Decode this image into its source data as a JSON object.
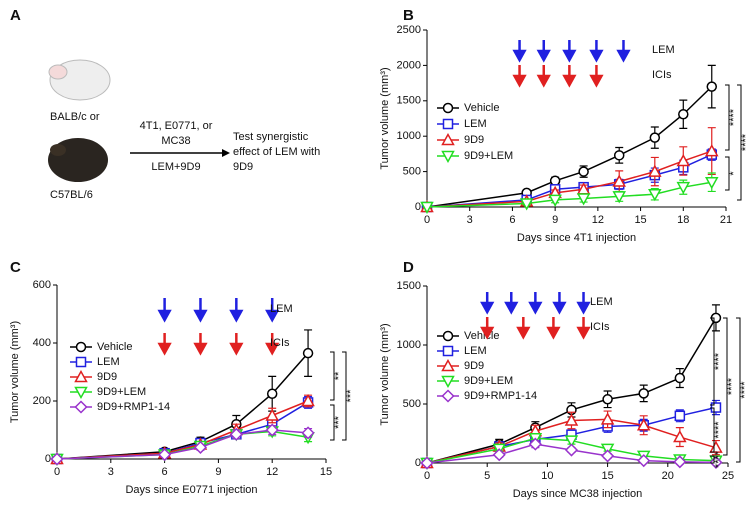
{
  "panel_a": {
    "label": "A",
    "mouse_top": "BALB/c or",
    "mouse_bottom": "C57BL/6",
    "cells": [
      "4T1, E0771, or",
      "MC38"
    ],
    "treatment": "LEM+9D9",
    "result": [
      "Test synergistic",
      "effect of LEM with",
      "9D9"
    ]
  },
  "chart_data": [
    {
      "type": "line",
      "panel": "B",
      "xlabel": "Days since 4T1 injection",
      "ylabel": "Tumor volume (mm³)",
      "xlim": [
        0,
        21
      ],
      "xticks": [
        0,
        3,
        6,
        9,
        12,
        15,
        18,
        21
      ],
      "ylim": [
        0,
        2500
      ],
      "yticks": [
        0,
        500,
        1000,
        1500,
        2000,
        2500
      ],
      "x": [
        0,
        7,
        9,
        11,
        13.5,
        16,
        18,
        20
      ],
      "series": [
        {
          "name": "Vehicle",
          "color": "#000000",
          "marker": "circle",
          "values": [
            0,
            200,
            370,
            500,
            730,
            980,
            1310,
            1700
          ],
          "errors": [
            0,
            30,
            50,
            80,
            110,
            150,
            200,
            300
          ]
        },
        {
          "name": "LEM",
          "color": "#2020e0",
          "marker": "square",
          "values": [
            0,
            100,
            250,
            280,
            320,
            450,
            560,
            740
          ],
          "errors": [
            0,
            20,
            40,
            60,
            70,
            100,
            100,
            80
          ]
        },
        {
          "name": "9D9",
          "color": "#e02020",
          "marker": "triangle",
          "values": [
            0,
            80,
            200,
            250,
            360,
            500,
            650,
            790
          ],
          "errors": [
            0,
            20,
            40,
            60,
            150,
            200,
            200,
            330
          ]
        },
        {
          "name": "9D9+LEM",
          "color": "#22dd22",
          "marker": "triangle-down",
          "values": [
            0,
            50,
            100,
            120,
            150,
            180,
            280,
            350
          ],
          "errors": [
            0,
            20,
            40,
            50,
            70,
            80,
            100,
            130
          ]
        }
      ],
      "treatments": [
        {
          "name": "LEM",
          "color": "#2020e0",
          "days": [
            6.5,
            8.2,
            10,
            11.9,
            13.8
          ]
        },
        {
          "name": "ICIs",
          "color": "#e02020",
          "days": [
            6.5,
            8.2,
            10,
            11.9
          ]
        }
      ],
      "significance": [
        "****",
        "****",
        "*"
      ]
    },
    {
      "type": "line",
      "panel": "C",
      "xlabel": "Days since E0771 injection",
      "ylabel": "Tumor volume (mm³)",
      "xlim": [
        0,
        15
      ],
      "xticks": [
        0,
        3,
        6,
        9,
        12,
        15
      ],
      "ylim": [
        0,
        600
      ],
      "yticks": [
        0,
        200,
        400,
        600
      ],
      "x": [
        0,
        6,
        8,
        10,
        12,
        14
      ],
      "series": [
        {
          "name": "Vehicle",
          "color": "#000000",
          "marker": "circle",
          "values": [
            0,
            25,
            60,
            120,
            225,
            365
          ],
          "errors": [
            0,
            5,
            15,
            30,
            60,
            80
          ]
        },
        {
          "name": "LEM",
          "color": "#2020e0",
          "marker": "square",
          "values": [
            0,
            20,
            55,
            85,
            120,
            195
          ],
          "errors": [
            0,
            5,
            10,
            15,
            20,
            20
          ]
        },
        {
          "name": "9D9",
          "color": "#e02020",
          "marker": "triangle",
          "values": [
            0,
            20,
            50,
            100,
            150,
            200
          ],
          "errors": [
            0,
            5,
            10,
            20,
            25,
            20
          ]
        },
        {
          "name": "9D9+LEM",
          "color": "#22dd22",
          "marker": "triangle-down",
          "values": [
            0,
            15,
            45,
            85,
            95,
            75
          ],
          "errors": [
            0,
            5,
            10,
            15,
            15,
            15
          ]
        },
        {
          "name": "9D9+RMP1-14",
          "color": "#9933cc",
          "marker": "diamond",
          "values": [
            0,
            15,
            40,
            85,
            100,
            90
          ],
          "errors": [
            0,
            5,
            10,
            15,
            15,
            15
          ]
        }
      ],
      "treatments": [
        {
          "name": "LEM",
          "color": "#2020e0",
          "days": [
            6,
            8,
            10,
            12
          ]
        },
        {
          "name": "ICIs",
          "color": "#e02020",
          "days": [
            6,
            8,
            10,
            12
          ]
        }
      ],
      "significance": [
        "**",
        "***",
        "***"
      ]
    },
    {
      "type": "line",
      "panel": "D",
      "xlabel": "Days since MC38 injection",
      "ylabel": "Tumor volume (mm³)",
      "xlim": [
        0,
        25
      ],
      "xticks": [
        0,
        5,
        10,
        15,
        20,
        25
      ],
      "ylim": [
        0,
        1500
      ],
      "yticks": [
        0,
        500,
        1000,
        1500
      ],
      "x": [
        0,
        6,
        9,
        12,
        15,
        18,
        21,
        24
      ],
      "series": [
        {
          "name": "Vehicle",
          "color": "#000000",
          "marker": "circle",
          "values": [
            0,
            160,
            300,
            450,
            540,
            590,
            720,
            1230
          ],
          "errors": [
            0,
            40,
            50,
            60,
            70,
            70,
            80,
            110
          ]
        },
        {
          "name": "LEM",
          "color": "#2020e0",
          "marker": "square",
          "values": [
            0,
            140,
            200,
            240,
            310,
            320,
            400,
            470
          ],
          "errors": [
            0,
            30,
            40,
            40,
            50,
            50,
            50,
            60
          ]
        },
        {
          "name": "9D9",
          "color": "#e02020",
          "marker": "triangle",
          "values": [
            0,
            140,
            270,
            360,
            370,
            320,
            220,
            130
          ],
          "errors": [
            0,
            30,
            50,
            70,
            70,
            80,
            80,
            60
          ]
        },
        {
          "name": "9D9+LEM",
          "color": "#22dd22",
          "marker": "triangle-down",
          "values": [
            0,
            120,
            210,
            190,
            120,
            60,
            30,
            20
          ],
          "errors": [
            0,
            20,
            30,
            30,
            20,
            20,
            10,
            10
          ]
        },
        {
          "name": "9D9+RMP1-14",
          "color": "#9933cc",
          "marker": "diamond",
          "values": [
            0,
            70,
            160,
            110,
            60,
            20,
            10,
            5
          ],
          "errors": [
            0,
            20,
            30,
            20,
            20,
            10,
            5,
            5
          ]
        }
      ],
      "treatments": [
        {
          "name": "LEM",
          "color": "#2020e0",
          "days": [
            5,
            7,
            9,
            11,
            13
          ]
        },
        {
          "name": "ICIs",
          "color": "#e02020",
          "days": [
            5,
            8,
            10.5,
            13
          ]
        }
      ],
      "significance": [
        "****",
        "****",
        "****",
        "****",
        "****"
      ]
    }
  ]
}
